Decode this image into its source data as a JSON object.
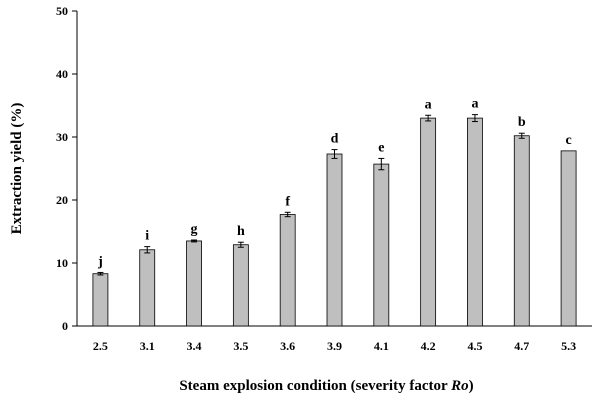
{
  "chart_data": {
    "type": "bar",
    "title": "",
    "xlabel_parts": [
      "Steam explosion condition (severity factor ",
      "Ro",
      ")"
    ],
    "ylabel": "Extraction yield (%)",
    "ylim": [
      0,
      50
    ],
    "yticks": [
      "0",
      "10",
      "20",
      "30",
      "40",
      "50"
    ],
    "ytick_values": [
      0,
      10,
      20,
      30,
      40,
      50
    ],
    "grid": false,
    "legend": "none",
    "bar_color": "#bfbfbf",
    "categories": [
      "2.5",
      "3.1",
      "3.4",
      "3.5",
      "3.6",
      "3.9",
      "4.1",
      "4.2",
      "4.5",
      "4.7",
      "5.3"
    ],
    "values": [
      8.3,
      12.1,
      13.5,
      12.9,
      17.7,
      27.3,
      25.7,
      33.0,
      33.0,
      30.2,
      27.8
    ],
    "errors": [
      0.2,
      0.5,
      0.15,
      0.4,
      0.35,
      0.7,
      0.9,
      0.45,
      0.55,
      0.4,
      0.0
    ],
    "significance": [
      "j",
      "i",
      "g",
      "h",
      "f",
      "d",
      "e",
      "a",
      "a",
      "b",
      "c"
    ]
  }
}
